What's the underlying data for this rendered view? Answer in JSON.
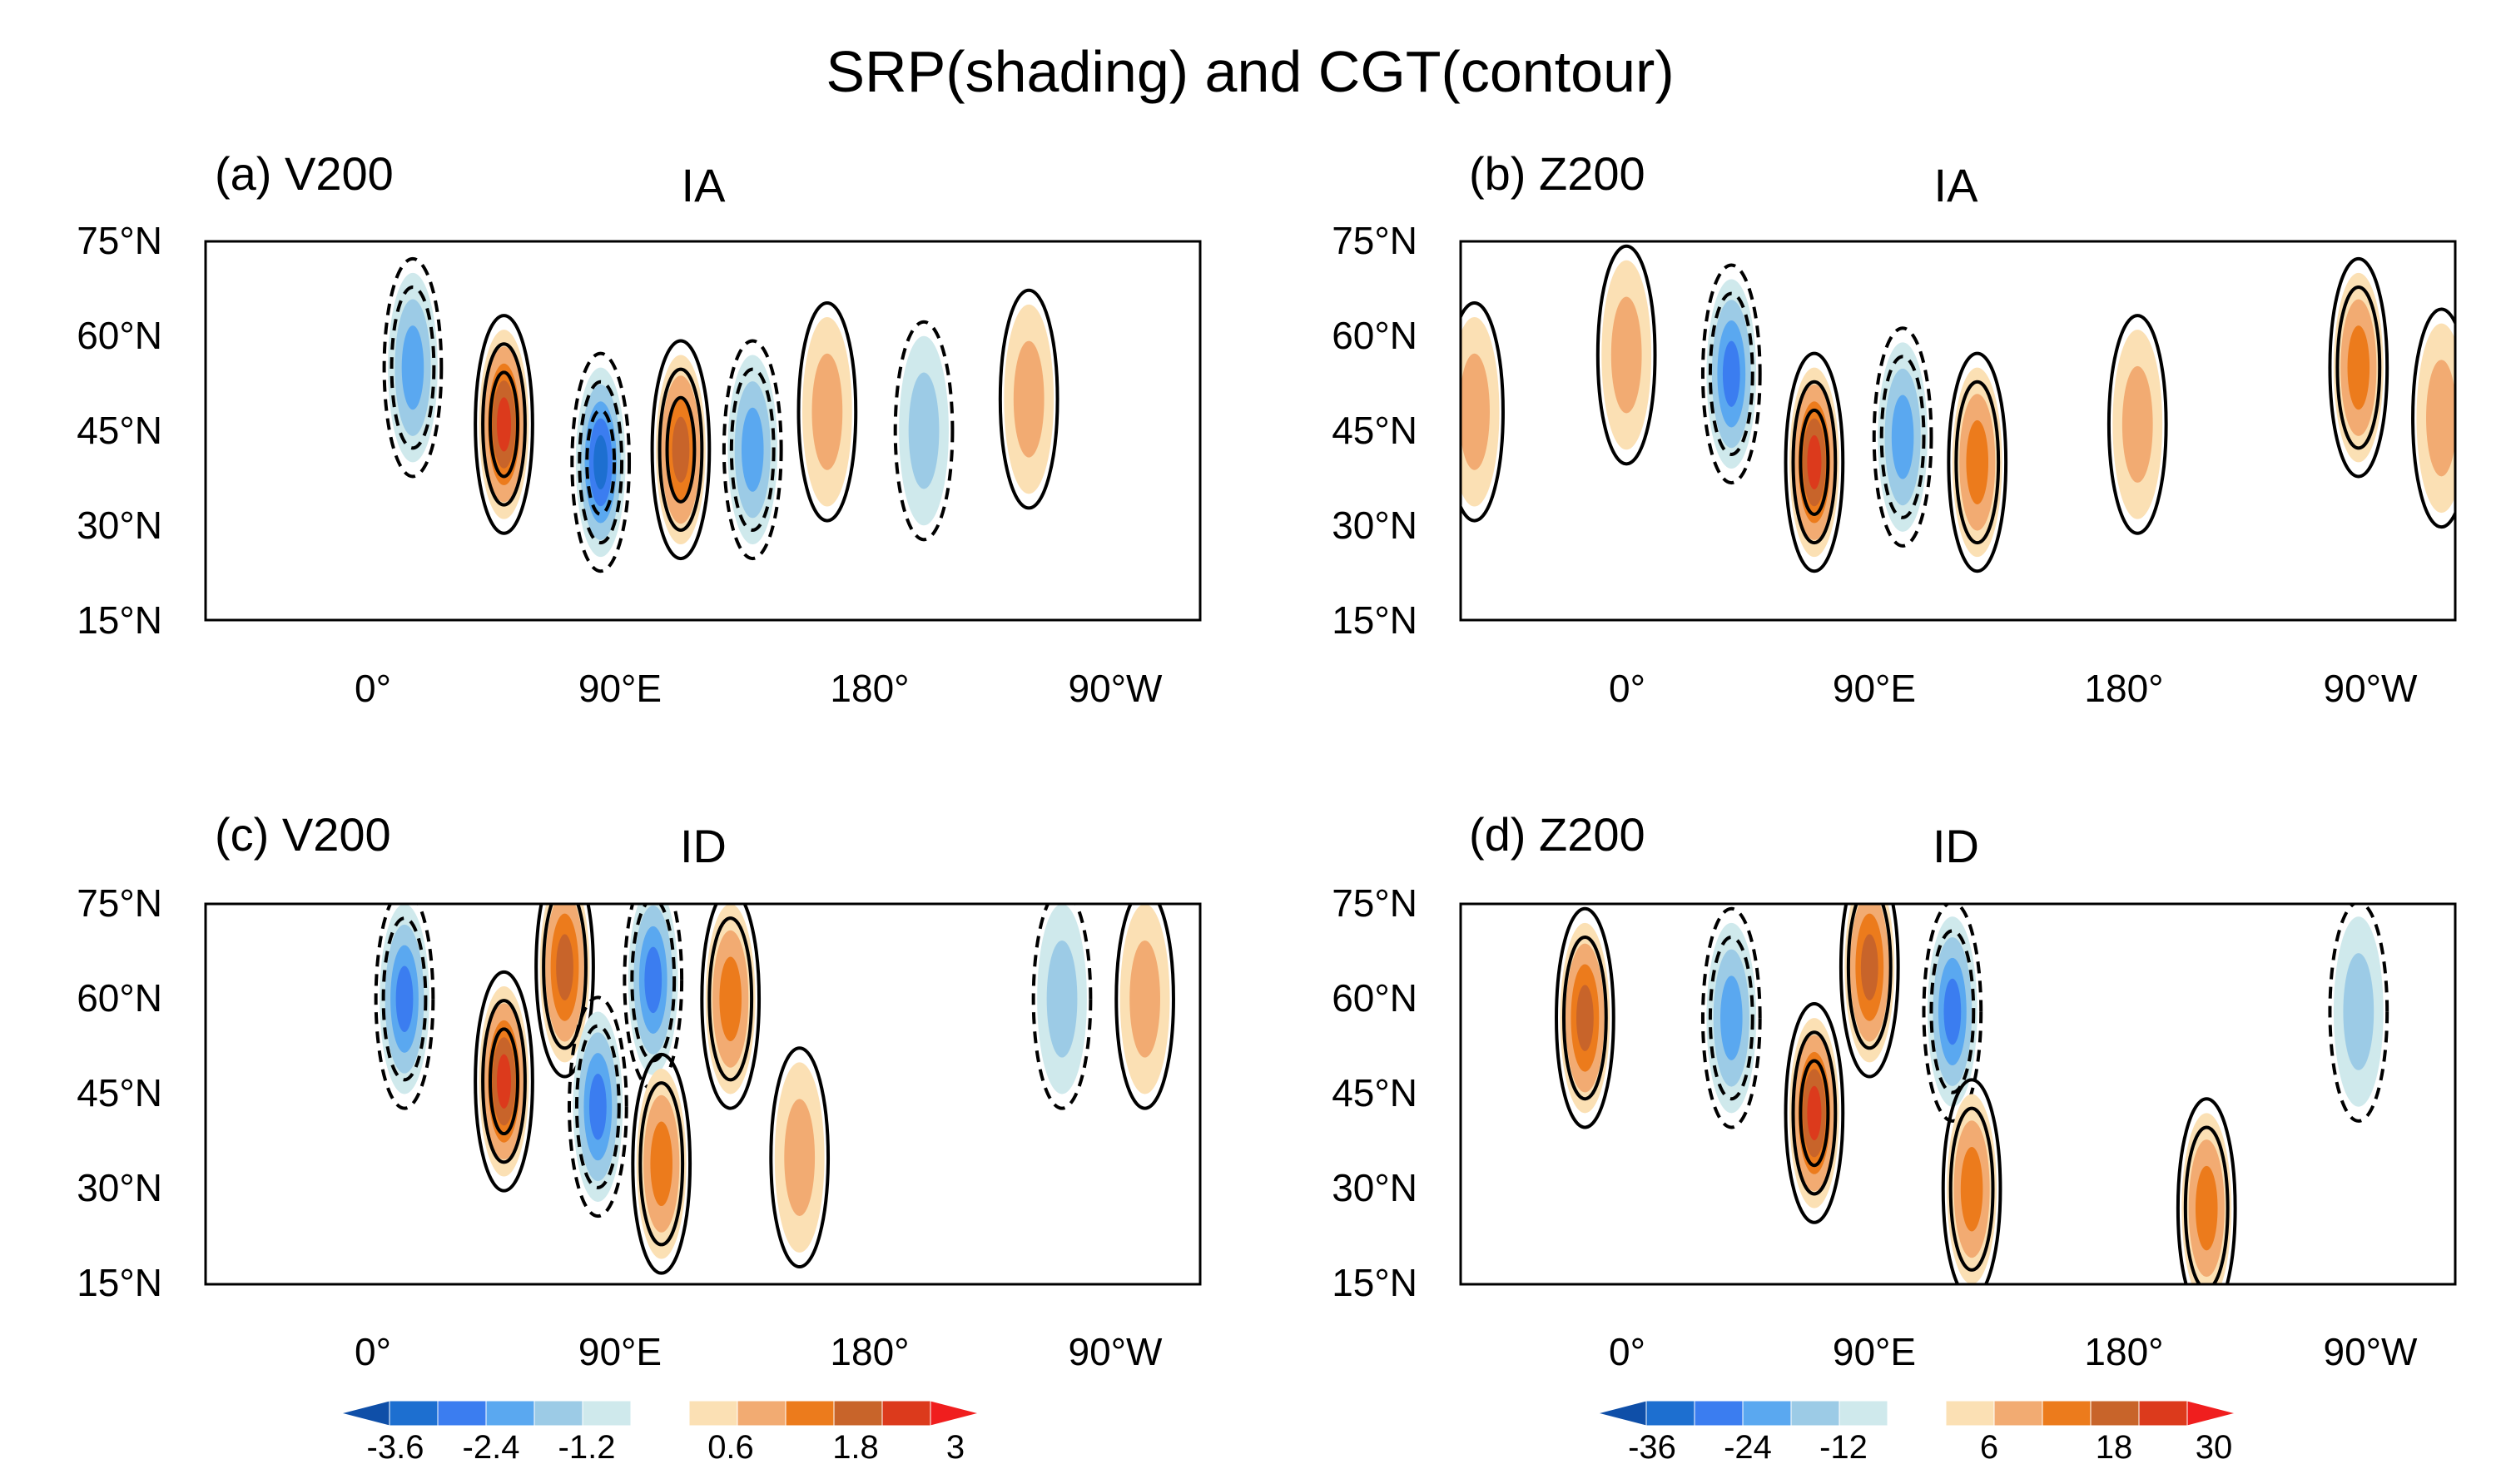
{
  "figure_title": "SRP(shading) and CGT(contour)",
  "chart_data": [
    {
      "type": "heatmap",
      "panel_label": "(a) V200",
      "period": "IA",
      "variable": "V200",
      "shading": "SRP",
      "contour": "CGT",
      "lat_ticks": [
        "75°N",
        "60°N",
        "45°N",
        "30°N",
        "15°N"
      ],
      "lon_ticks": [
        "0°",
        "90°E",
        "180°",
        "90°W"
      ],
      "lat_range": [
        15,
        75
      ],
      "lon_range": [
        -60,
        300
      ],
      "anomaly_centers": [
        {
          "lon": 15,
          "lat": 55,
          "sign": "negative",
          "strength": 0.6
        },
        {
          "lon": 48,
          "lat": 46,
          "sign": "positive",
          "strength": 0.9
        },
        {
          "lon": 83,
          "lat": 40,
          "sign": "negative",
          "strength": 0.9
        },
        {
          "lon": 112,
          "lat": 42,
          "sign": "positive",
          "strength": 0.85
        },
        {
          "lon": 138,
          "lat": 42,
          "sign": "negative",
          "strength": 0.5
        },
        {
          "lon": 165,
          "lat": 48,
          "sign": "positive",
          "strength": 0.3
        },
        {
          "lon": 200,
          "lat": 45,
          "sign": "negative",
          "strength": 0.3
        },
        {
          "lon": 238,
          "lat": 50,
          "sign": "positive",
          "strength": 0.4
        }
      ]
    },
    {
      "type": "heatmap",
      "panel_label": "(b) Z200",
      "period": "IA",
      "variable": "Z200",
      "shading": "SRP",
      "contour": "CGT",
      "lat_ticks": [
        "75°N",
        "60°N",
        "45°N",
        "30°N",
        "15°N"
      ],
      "lon_ticks": [
        "0°",
        "90°E",
        "180°",
        "90°W"
      ],
      "lat_range": [
        15,
        75
      ],
      "lon_range": [
        -60,
        300
      ],
      "anomaly_centers": [
        {
          "lon": -55,
          "lat": 48,
          "sign": "positive",
          "strength": 0.4
        },
        {
          "lon": 0,
          "lat": 57,
          "sign": "positive",
          "strength": 0.4
        },
        {
          "lon": 38,
          "lat": 54,
          "sign": "negative",
          "strength": 0.8
        },
        {
          "lon": 68,
          "lat": 40,
          "sign": "positive",
          "strength": 1.0
        },
        {
          "lon": 100,
          "lat": 44,
          "sign": "negative",
          "strength": 0.5
        },
        {
          "lon": 127,
          "lat": 40,
          "sign": "positive",
          "strength": 0.6
        },
        {
          "lon": 185,
          "lat": 46,
          "sign": "positive",
          "strength": 0.4
        },
        {
          "lon": 265,
          "lat": 55,
          "sign": "positive",
          "strength": 0.5
        },
        {
          "lon": 295,
          "lat": 47,
          "sign": "positive",
          "strength": 0.4
        }
      ]
    },
    {
      "type": "heatmap",
      "panel_label": "(c) V200",
      "period": "ID",
      "variable": "V200",
      "shading": "SRP",
      "contour": "CGT",
      "lat_ticks": [
        "75°N",
        "60°N",
        "45°N",
        "30°N",
        "15°N"
      ],
      "lon_ticks": [
        "0°",
        "90°E",
        "180°",
        "90°W"
      ],
      "lat_range": [
        15,
        75
      ],
      "lon_range": [
        -60,
        300
      ],
      "anomaly_centers": [
        {
          "lon": 12,
          "lat": 60,
          "sign": "negative",
          "strength": 0.8
        },
        {
          "lon": 48,
          "lat": 47,
          "sign": "positive",
          "strength": 1.0
        },
        {
          "lon": 70,
          "lat": 65,
          "sign": "positive",
          "strength": 0.7
        },
        {
          "lon": 82,
          "lat": 43,
          "sign": "negative",
          "strength": 0.8
        },
        {
          "lon": 102,
          "lat": 63,
          "sign": "negative",
          "strength": 0.8
        },
        {
          "lon": 105,
          "lat": 34,
          "sign": "positive",
          "strength": 0.6
        },
        {
          "lon": 130,
          "lat": 60,
          "sign": "positive",
          "strength": 0.6
        },
        {
          "lon": 155,
          "lat": 35,
          "sign": "positive",
          "strength": 0.4
        },
        {
          "lon": 250,
          "lat": 60,
          "sign": "negative",
          "strength": 0.4
        },
        {
          "lon": 280,
          "lat": 60,
          "sign": "positive",
          "strength": 0.4
        }
      ]
    },
    {
      "type": "heatmap",
      "panel_label": "(d) Z200",
      "period": "ID",
      "variable": "Z200",
      "shading": "SRP",
      "contour": "CGT",
      "lat_ticks": [
        "75°N",
        "60°N",
        "45°N",
        "30°N",
        "15°N"
      ],
      "lon_ticks": [
        "0°",
        "90°E",
        "180°",
        "90°W"
      ],
      "lat_range": [
        15,
        75
      ],
      "lon_range": [
        -60,
        300
      ],
      "anomaly_centers": [
        {
          "lon": -15,
          "lat": 57,
          "sign": "positive",
          "strength": 0.7
        },
        {
          "lon": 38,
          "lat": 57,
          "sign": "negative",
          "strength": 0.6
        },
        {
          "lon": 68,
          "lat": 42,
          "sign": "positive",
          "strength": 1.0
        },
        {
          "lon": 88,
          "lat": 65,
          "sign": "positive",
          "strength": 0.7
        },
        {
          "lon": 118,
          "lat": 58,
          "sign": "negative",
          "strength": 0.8
        },
        {
          "lon": 125,
          "lat": 30,
          "sign": "positive",
          "strength": 0.5
        },
        {
          "lon": 210,
          "lat": 27,
          "sign": "positive",
          "strength": 0.5
        },
        {
          "lon": 265,
          "lat": 58,
          "sign": "negative",
          "strength": 0.3
        }
      ]
    }
  ],
  "colorbars": [
    {
      "variable": "V200",
      "labels": [
        "-3.6",
        "-2.4",
        "-1.2",
        "0.6",
        "1.8",
        "3"
      ]
    },
    {
      "variable": "Z200",
      "labels": [
        "-36",
        "-24",
        "-12",
        "6",
        "18",
        "30"
      ]
    }
  ],
  "colors": {
    "negative": [
      "#0f4fa8",
      "#1d6fd0",
      "#3b7df0",
      "#5aa8f0",
      "#9ccbe6",
      "#cfe9ec"
    ],
    "positive": [
      "#fbe0b4",
      "#f2ab72",
      "#ec7b1c",
      "#c8642a",
      "#dc3a1c",
      "#f01e1e"
    ]
  }
}
